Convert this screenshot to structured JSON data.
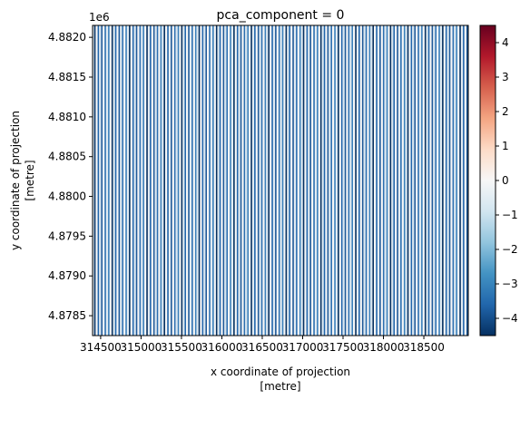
{
  "chart_data": {
    "type": "heatmap",
    "title": "pca_component = 0",
    "xlabel_line1": "x coordinate of projection",
    "xlabel_line2": "[metre]",
    "ylabel_line1": "y coordinate of projection",
    "ylabel_line2": "[metre]",
    "y_offset_label": "1e6",
    "xlim": [
      314400,
      319050
    ],
    "ylim": [
      4878250,
      4882150
    ],
    "x_ticks": [
      {
        "value": 314500,
        "label": "314500"
      },
      {
        "value": 315000,
        "label": "315000"
      },
      {
        "value": 315500,
        "label": "315500"
      },
      {
        "value": 316000,
        "label": "316000"
      },
      {
        "value": 316500,
        "label": "316500"
      },
      {
        "value": 317000,
        "label": "317000"
      },
      {
        "value": 317500,
        "label": "317500"
      },
      {
        "value": 318000,
        "label": "318000"
      },
      {
        "value": 318500,
        "label": "318500"
      }
    ],
    "y_ticks": [
      {
        "value": 4878500,
        "label": "4.8785"
      },
      {
        "value": 4879000,
        "label": "4.8790"
      },
      {
        "value": 4879500,
        "label": "4.8795"
      },
      {
        "value": 4880000,
        "label": "4.8800"
      },
      {
        "value": 4880500,
        "label": "4.8805"
      },
      {
        "value": 4881000,
        "label": "4.8810"
      },
      {
        "value": 4881500,
        "label": "4.8815"
      },
      {
        "value": 4882000,
        "label": "4.8820"
      }
    ],
    "colorbar": {
      "colormap": "RdBu_r",
      "vmin": -4.5,
      "vmax": 4.5,
      "ticks": [
        -4,
        -3,
        -2,
        -1,
        0,
        1,
        2,
        3,
        4
      ],
      "tick_labels": [
        "−4",
        "−3",
        "−2",
        "−1",
        "0",
        "1",
        "2",
        "3",
        "4"
      ]
    },
    "dominant_value_range": [
      -2.5,
      0.5
    ],
    "stripe_count": 108,
    "colors": {
      "dark_blue": "#053061",
      "mid_blue": "#2166ac",
      "light_blue": "#92c5de",
      "white": "#f7f7f7",
      "dark_red": "#67001f"
    }
  }
}
